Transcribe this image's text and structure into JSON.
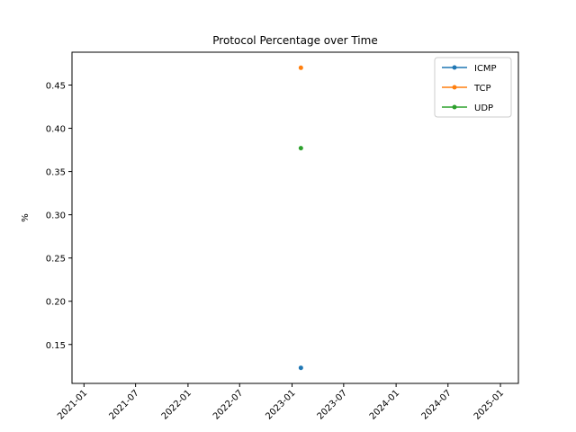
{
  "chart_data": {
    "type": "line",
    "title": "Protocol Percentage over Time",
    "xlabel": "",
    "ylabel": "%",
    "x_ticks": [
      "2021-01",
      "2021-07",
      "2022-01",
      "2022-07",
      "2023-01",
      "2023-07",
      "2024-01",
      "2024-07",
      "2025-01"
    ],
    "y_ticks": [
      "0.15",
      "0.20",
      "0.25",
      "0.30",
      "0.35",
      "0.40",
      "0.45"
    ],
    "xlim": [
      "2020-11-20",
      "2025-03-05"
    ],
    "ylim": [
      0.105,
      0.488
    ],
    "grid": false,
    "legend_position": "upper right",
    "series": [
      {
        "name": "ICMP",
        "color": "#1f77b4",
        "points": [
          {
            "x": "2023-02-01",
            "y": 0.123
          }
        ]
      },
      {
        "name": "TCP",
        "color": "#ff7f0e",
        "points": [
          {
            "x": "2023-02-01",
            "y": 0.47
          }
        ]
      },
      {
        "name": "UDP",
        "color": "#2ca02c",
        "points": [
          {
            "x": "2023-02-01",
            "y": 0.377
          }
        ]
      }
    ]
  }
}
